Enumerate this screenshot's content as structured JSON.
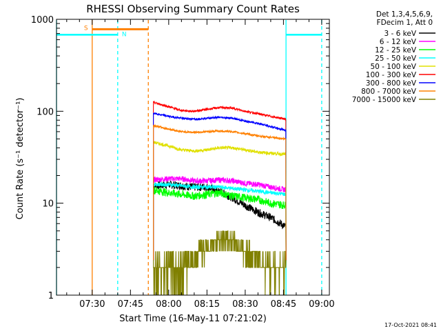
{
  "chart_data": {
    "type": "line",
    "title": "RHESSI Observing Summary Count Rates",
    "xlabel": "Start Time (16-May-11 07:21:02)",
    "ylabel": "Count Rate (s⁻¹ detector⁻¹)",
    "x_unit": "minutes after 07:00 UT",
    "xlim": [
      16,
      123
    ],
    "ylim": [
      1,
      1000
    ],
    "y_scale": "log",
    "x_ticks": [
      {
        "value": 30,
        "label": "07:30"
      },
      {
        "value": 45,
        "label": "07:45"
      },
      {
        "value": 60,
        "label": "08:00"
      },
      {
        "value": 75,
        "label": "08:15"
      },
      {
        "value": 90,
        "label": "08:30"
      },
      {
        "value": 105,
        "label": "08:45"
      },
      {
        "value": 120,
        "label": "09:00"
      }
    ],
    "y_ticks": [
      {
        "value": 1,
        "label": "1"
      },
      {
        "value": 10,
        "label": "10"
      },
      {
        "value": 100,
        "label": "100"
      },
      {
        "value": 1000,
        "label": "1000"
      }
    ],
    "legend_position": "right",
    "legend_header": [
      "Det 1,3,4,5,6,9,",
      "FDecim 1, Att 0"
    ],
    "markers": {
      "night_lines": [
        {
          "x": 16,
          "style": "solid",
          "color": "#00ffff",
          "bar_y": 680
        },
        {
          "x": 30,
          "style": "solid",
          "color": "#ff8000"
        },
        {
          "x": 40,
          "style": "dashed",
          "color": "#00ffff",
          "bar_y": 680,
          "label": "N"
        },
        {
          "x": 52,
          "style": "dashed",
          "color": "#ff8000"
        },
        {
          "x": 106,
          "style": "solid",
          "color": "#00ffff",
          "bar_y": 680
        },
        {
          "x": 120,
          "style": "dashed",
          "color": "#00ffff"
        }
      ],
      "saa_bar": {
        "x_start": 30,
        "x_end": 52,
        "y": 780,
        "label": "S",
        "color": "#ff8000"
      }
    },
    "series": [
      {
        "name": "3 - 6 keV",
        "color": "#000000",
        "x": [
          54,
          60,
          65,
          70,
          75,
          80,
          85,
          90,
          95,
          100,
          104,
          106
        ],
        "y": [
          15.5,
          16,
          15.5,
          15,
          15,
          13.5,
          11.5,
          9.5,
          8,
          7,
          6,
          5.5
        ]
      },
      {
        "name": "6 - 12 keV",
        "color": "#ff00ff",
        "x": [
          54,
          60,
          65,
          70,
          75,
          80,
          85,
          90,
          95,
          100,
          106
        ],
        "y": [
          18,
          18.5,
          18.5,
          17.5,
          17.5,
          18,
          17.5,
          16.5,
          16,
          15,
          14
        ]
      },
      {
        "name": "12 - 25 keV",
        "color": "#00ff00",
        "x": [
          54,
          60,
          65,
          70,
          75,
          80,
          85,
          90,
          95,
          100,
          106
        ],
        "y": [
          14,
          13,
          12.5,
          12,
          12.5,
          13,
          12,
          11.5,
          11,
          10,
          9.5
        ]
      },
      {
        "name": "25 - 50 keV",
        "color": "#00ffff",
        "x": [
          54,
          60,
          65,
          70,
          75,
          80,
          85,
          90,
          95,
          100,
          106
        ],
        "y": [
          16,
          16,
          15.5,
          15,
          15,
          15,
          14.5,
          14,
          13.5,
          13,
          12.5
        ]
      },
      {
        "name": "50 - 100 keV",
        "color": "#e0e000",
        "x": [
          54,
          60,
          65,
          70,
          75,
          80,
          85,
          90,
          95,
          100,
          106
        ],
        "y": [
          46,
          42,
          38,
          37,
          38,
          40,
          40,
          38,
          36,
          35,
          34
        ]
      },
      {
        "name": "100 - 300 keV",
        "color": "#ff0000",
        "x": [
          54,
          60,
          65,
          70,
          75,
          80,
          85,
          90,
          95,
          100,
          106
        ],
        "y": [
          125,
          112,
          102,
          100,
          105,
          110,
          108,
          100,
          94,
          88,
          82
        ]
      },
      {
        "name": "300 - 800 keV",
        "color": "#0000ff",
        "x": [
          54,
          60,
          65,
          70,
          75,
          80,
          85,
          90,
          95,
          100,
          106
        ],
        "y": [
          95,
          88,
          84,
          82,
          84,
          86,
          84,
          78,
          74,
          68,
          62
        ]
      },
      {
        "name": "800 - 7000 keV",
        "color": "#ff8000",
        "x": [
          54,
          60,
          65,
          70,
          75,
          80,
          85,
          90,
          95,
          100,
          106
        ],
        "y": [
          70,
          64,
          60,
          59,
          60,
          61,
          60,
          57,
          54,
          52,
          50
        ]
      },
      {
        "name": "7000 - 15000 keV",
        "color": "#808000",
        "x": [
          54,
          60,
          65,
          70,
          75,
          80,
          85,
          90,
          95,
          100,
          106
        ],
        "y": [
          2,
          2,
          2,
          2.5,
          3.5,
          4,
          4,
          3,
          2.5,
          2,
          2
        ]
      }
    ]
  },
  "footer": {
    "timestamp": "17-Oct-2021 08:41"
  }
}
